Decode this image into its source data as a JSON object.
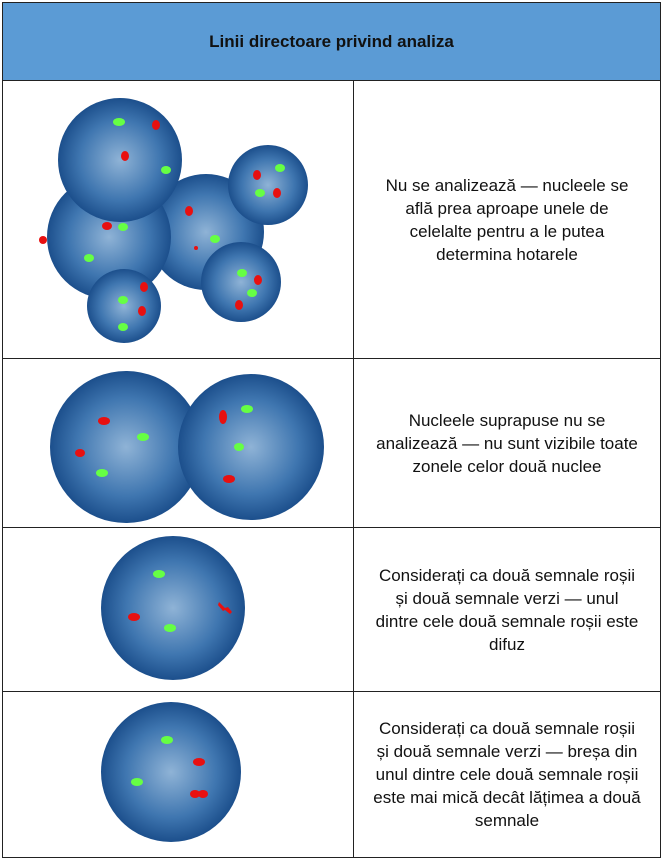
{
  "header": {
    "title": "Linii directoare privind analiza"
  },
  "rows": [
    {
      "text": "Nu se analizează — nucleele se află prea aproape unele de celelalte pentru a le putea determina hotarele"
    },
    {
      "text": "Nucleele suprapuse nu se analizează — nu sunt vizibile toate zonele celor două nuclee"
    },
    {
      "text": "Considerați ca două semnale roșii și două semnale verzi — unul dintre cele două semnale roșii este difuz"
    },
    {
      "text": "Considerați ca două semnale roșii și două semnale verzi — breșa din unul dintre cele două semnale roșii este mai mică decât lățimea a două semnale"
    }
  ]
}
